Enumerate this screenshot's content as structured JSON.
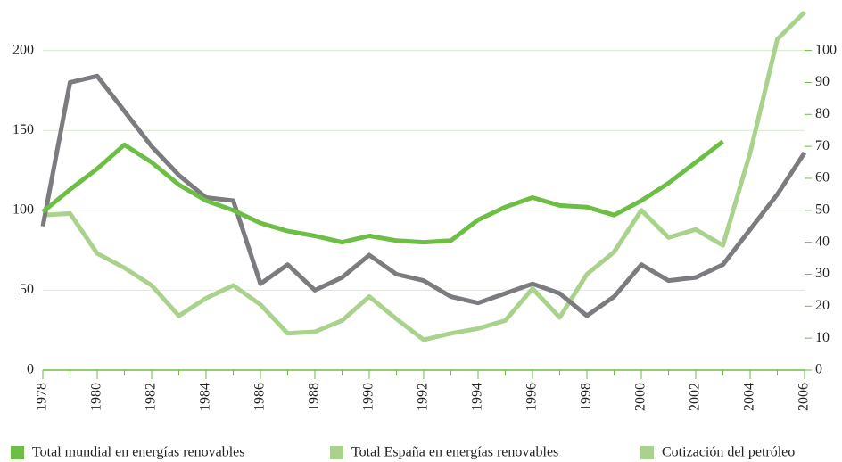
{
  "chart_data": {
    "type": "line",
    "x": [
      1978,
      1979,
      1980,
      1981,
      1982,
      1983,
      1984,
      1985,
      1986,
      1987,
      1988,
      1989,
      1990,
      1991,
      1992,
      1993,
      1994,
      1995,
      1996,
      1997,
      1998,
      1999,
      2000,
      2001,
      2002,
      2003,
      2004,
      2005,
      2006
    ],
    "xlim": [
      1978,
      2006
    ],
    "xticks": [
      1978,
      1980,
      1982,
      1984,
      1986,
      1988,
      1990,
      1992,
      1994,
      1996,
      1998,
      2000,
      2002,
      2004,
      2006
    ],
    "ylim": [
      0,
      226
    ],
    "yticks": [
      0,
      50,
      100,
      150,
      200
    ],
    "y2lim": [
      0,
      113
    ],
    "y2ticks": [
      0,
      10,
      20,
      30,
      40,
      50,
      60,
      70,
      80,
      90,
      100
    ],
    "grid": true,
    "series": [
      {
        "name": "Total mundial en energías renovables",
        "color": "#6dbe45",
        "legend_color": "#6dbe45",
        "values": [
          99,
          113,
          126,
          141,
          130,
          116,
          106,
          100,
          92,
          87,
          84,
          80,
          84,
          81,
          80,
          81,
          94,
          102,
          108,
          103,
          102,
          97,
          106,
          117,
          130,
          143,
          null,
          null,
          null
        ]
      },
      {
        "name": "Total España en energías renovables",
        "color": "#a9d38c",
        "legend_color": "#a9d38c",
        "values": [
          97,
          98,
          73,
          64,
          53,
          34,
          45,
          53,
          41,
          23,
          24,
          31,
          46,
          32,
          19,
          23,
          26,
          31,
          51,
          33,
          60,
          74,
          100,
          83,
          88,
          78,
          136,
          207,
          224
        ]
      },
      {
        "name": "Cotización del petróleo",
        "color": "#7c7c80",
        "legend_color": "#a9d38c",
        "axis": "y2",
        "values": [
          45,
          90,
          92,
          81,
          70,
          61,
          54,
          53,
          27,
          33,
          25,
          29,
          36,
          30,
          28,
          23,
          21,
          24,
          27,
          24,
          17,
          23,
          33,
          28,
          29,
          33,
          44,
          55,
          68
        ]
      }
    ]
  }
}
